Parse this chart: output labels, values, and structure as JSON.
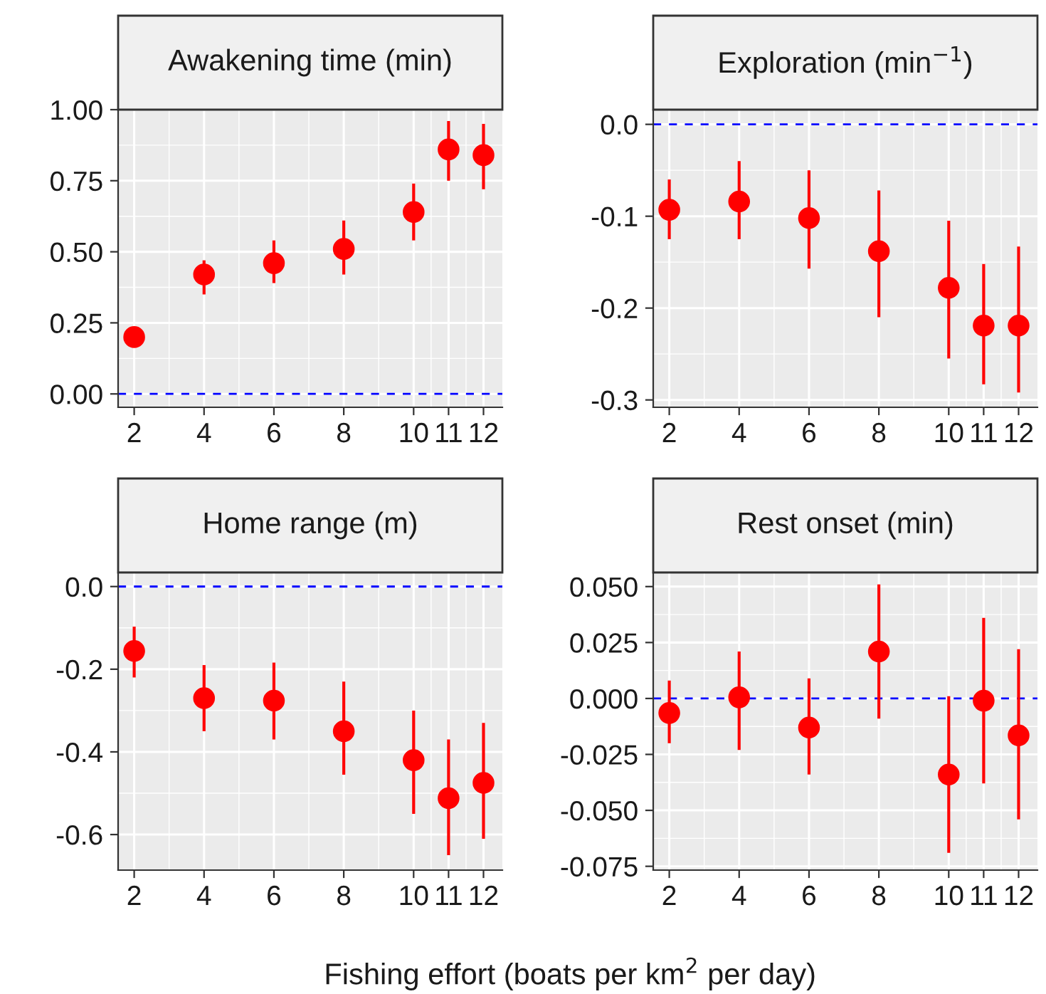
{
  "chart_data": [
    {
      "type": "scatter",
      "title": "Awakening time (min)",
      "x": [
        2,
        4,
        6,
        8,
        10,
        11,
        12
      ],
      "color": "#ff0000",
      "marker": "circle",
      "values": [
        0.2,
        0.42,
        0.46,
        0.51,
        0.64,
        0.86,
        0.84
      ],
      "errors": [
        [
          0.17,
          0.23
        ],
        [
          0.35,
          0.47
        ],
        [
          0.39,
          0.54
        ],
        [
          0.42,
          0.61
        ],
        [
          0.54,
          0.74
        ],
        [
          0.75,
          0.96
        ],
        [
          0.72,
          0.95
        ]
      ],
      "xlim": [
        1.54,
        12.54
      ],
      "xticks": [
        2,
        4,
        6,
        8,
        10,
        11,
        12
      ],
      "ylim": [
        -0.047,
        1.0
      ],
      "yticks": [
        {
          "value": 0,
          "label": "0.00"
        },
        {
          "value": 0.25,
          "label": "0.25"
        },
        {
          "value": 0.5,
          "label": "0.50"
        },
        {
          "value": 0.75,
          "label": "0.75"
        },
        {
          "value": 1,
          "label": "1.00"
        }
      ],
      "ref_lines": [
        {
          "axis": "y",
          "value": 0,
          "color": "#0000ff",
          "line_style": "dashed"
        }
      ],
      "grid": true
    },
    {
      "type": "scatter",
      "title": "Exploration (min$^{−1}$)",
      "x": [
        2,
        4,
        6,
        8,
        10,
        11,
        12
      ],
      "color": "#ff0000",
      "marker": "circle",
      "values": [
        -0.093,
        -0.084,
        -0.102,
        -0.138,
        -0.178,
        -0.219,
        -0.219
      ],
      "errors": [
        [
          -0.125,
          -0.06
        ],
        [
          -0.125,
          -0.04
        ],
        [
          -0.157,
          -0.05
        ],
        [
          -0.21,
          -0.072
        ],
        [
          -0.255,
          -0.105
        ],
        [
          -0.283,
          -0.152
        ],
        [
          -0.292,
          -0.133
        ]
      ],
      "xlim": [
        1.54,
        12.54
      ],
      "xticks": [
        2,
        4,
        6,
        8,
        10,
        11,
        12
      ],
      "ylim": [
        -0.308,
        0.016
      ],
      "yticks": [
        {
          "value": -0.3,
          "label": "-0.3"
        },
        {
          "value": -0.2,
          "label": "-0.2"
        },
        {
          "value": -0.1,
          "label": "-0.1"
        },
        {
          "value": 0,
          "label": "0.0"
        }
      ],
      "ref_lines": [
        {
          "axis": "y",
          "value": 0,
          "color": "#0000ff",
          "line_style": "dashed"
        }
      ],
      "grid": true
    },
    {
      "type": "scatter",
      "title": "Home range (m)",
      "x": [
        2,
        4,
        6,
        8,
        10,
        11,
        12
      ],
      "color": "#ff0000",
      "marker": "circle",
      "values": [
        -0.156,
        -0.27,
        -0.276,
        -0.35,
        -0.42,
        -0.512,
        -0.475
      ],
      "errors": [
        [
          -0.22,
          -0.097
        ],
        [
          -0.35,
          -0.19
        ],
        [
          -0.37,
          -0.184
        ],
        [
          -0.455,
          -0.23
        ],
        [
          -0.55,
          -0.3
        ],
        [
          -0.65,
          -0.37
        ],
        [
          -0.61,
          -0.33
        ]
      ],
      "xlim": [
        1.54,
        12.54
      ],
      "xticks": [
        2,
        4,
        6,
        8,
        10,
        11,
        12
      ],
      "ylim": [
        -0.686,
        0.034
      ],
      "yticks": [
        {
          "value": -0.6,
          "label": "-0.6"
        },
        {
          "value": -0.4,
          "label": "-0.4"
        },
        {
          "value": -0.2,
          "label": "-0.2"
        },
        {
          "value": 0,
          "label": "0.0"
        }
      ],
      "ref_lines": [
        {
          "axis": "y",
          "value": 0,
          "color": "#0000ff",
          "line_style": "dashed"
        }
      ],
      "grid": true,
      "xlabel": "Fishing effort (boats per km$^{2}$ per day)"
    },
    {
      "type": "scatter",
      "title": "Rest onset (min)",
      "x": [
        2,
        4,
        6,
        8,
        10,
        11,
        12
      ],
      "color": "#ff0000",
      "marker": "circle",
      "values": [
        -0.0065,
        0.0005,
        -0.013,
        0.021,
        -0.034,
        -0.001,
        -0.0165
      ],
      "errors": [
        [
          -0.02,
          0.008
        ],
        [
          -0.023,
          0.021
        ],
        [
          -0.034,
          0.009
        ],
        [
          -0.009,
          0.051
        ],
        [
          -0.069,
          0.001
        ],
        [
          -0.038,
          0.036
        ],
        [
          -0.054,
          0.022
        ]
      ],
      "xlim": [
        1.54,
        12.54
      ],
      "xticks": [
        2,
        4,
        6,
        8,
        10,
        11,
        12
      ],
      "ylim": [
        -0.0767,
        0.0563
      ],
      "yticks": [
        {
          "value": -0.075,
          "label": "-0.075"
        },
        {
          "value": -0.05,
          "label": "-0.050"
        },
        {
          "value": -0.025,
          "label": "-0.025"
        },
        {
          "value": 0,
          "label": "0.000"
        },
        {
          "value": 0.025,
          "label": "0.025"
        },
        {
          "value": 0.05,
          "label": "0.050"
        }
      ],
      "ref_lines": [
        {
          "axis": "y",
          "value": 0,
          "color": "#0000ff",
          "line_style": "dashed"
        }
      ],
      "grid": true
    }
  ]
}
